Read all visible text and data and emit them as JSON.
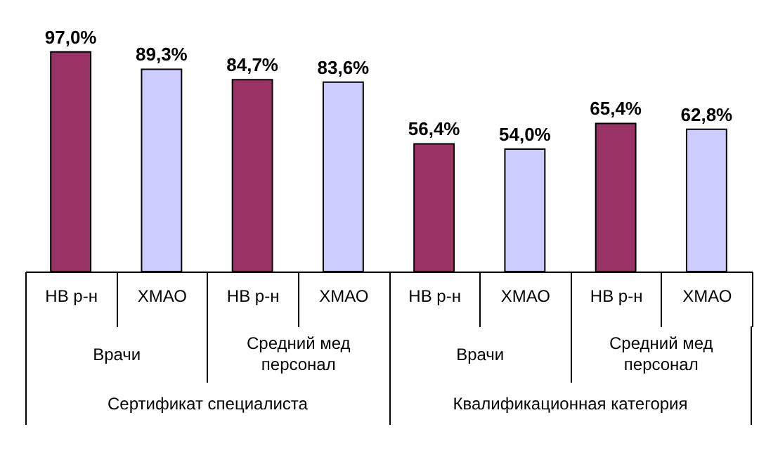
{
  "chart_data": {
    "type": "bar",
    "categories": [
      "НВ р-н",
      "ХМАО",
      "НВ р-н",
      "ХМАО",
      "НВ р-н",
      "ХМАО",
      "НВ р-н",
      "ХМАО"
    ],
    "values": [
      97.0,
      89.3,
      84.7,
      83.6,
      56.4,
      54.0,
      65.4,
      62.8
    ],
    "colors": [
      "#993366",
      "#ccccff",
      "#993366",
      "#ccccff",
      "#993366",
      "#ccccff",
      "#993366",
      "#ccccff"
    ],
    "value_labels": [
      "97,0%",
      "89,3%",
      "84,7%",
      "83,6%",
      "56,4%",
      "54,0%",
      "65,4%",
      "62,8%"
    ],
    "annotations": [
      "Врачи",
      "Средний мед персонал",
      "Врачи",
      "Средний мед персонал",
      "Сертификат специалиста",
      "Квалификационная категория"
    ],
    "grid": false
  }
}
